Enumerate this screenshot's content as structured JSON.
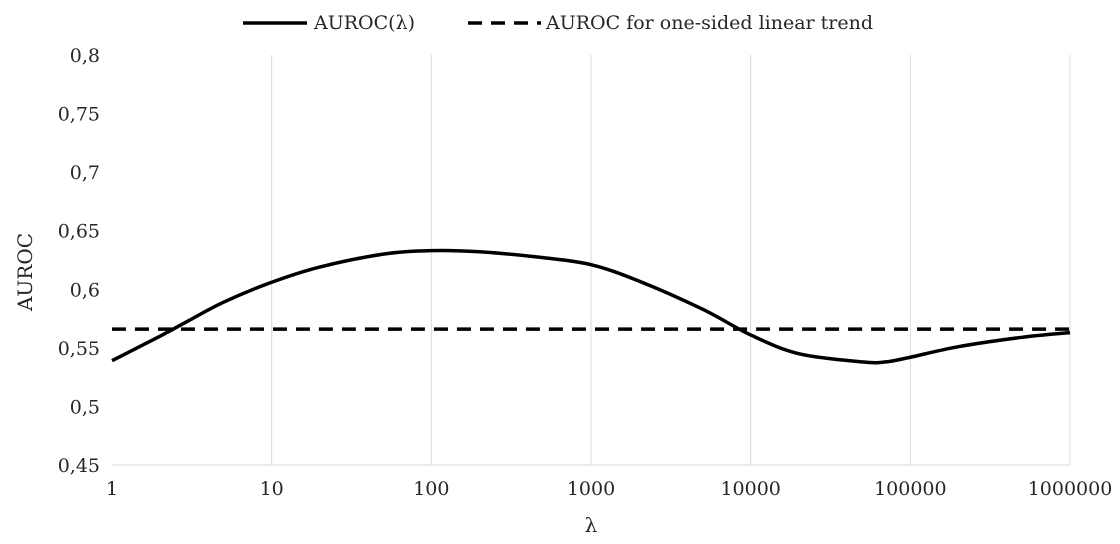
{
  "chart_data": {
    "type": "line",
    "x_scale": "log",
    "xlabel": "λ",
    "ylabel": "AUROC",
    "xlim": [
      1,
      1000000
    ],
    "ylim": [
      0.45,
      0.8
    ],
    "x_ticks": [
      1,
      10,
      100,
      1000,
      10000,
      100000,
      1000000
    ],
    "x_tick_labels": [
      "1",
      "10",
      "100",
      "1000",
      "10000",
      "100000",
      "1000000"
    ],
    "y_ticks": [
      0.45,
      0.5,
      0.55,
      0.6,
      0.65,
      0.7,
      0.75,
      0.8
    ],
    "y_tick_labels": [
      "0,45",
      "0,5",
      "0,55",
      "0,6",
      "0,65",
      "0,7",
      "0,75",
      "0,8"
    ],
    "grid": "vertical",
    "legend_position": "top",
    "series": [
      {
        "name": "AUROC(λ)",
        "style": "solid",
        "color": "#000000",
        "x": [
          1,
          2,
          3,
          5,
          10,
          20,
          50,
          100,
          200,
          500,
          1000,
          2000,
          5000,
          10000,
          20000,
          50000,
          70000,
          100000,
          200000,
          500000,
          1000000
        ],
        "y": [
          0.539,
          0.56,
          0.573,
          0.589,
          0.606,
          0.619,
          0.63,
          0.633,
          0.632,
          0.627,
          0.621,
          0.607,
          0.583,
          0.561,
          0.545,
          0.538,
          0.538,
          0.542,
          0.551,
          0.559,
          0.563
        ]
      },
      {
        "name": "AUROC for one-sided linear trend",
        "style": "dashed",
        "color": "#000000",
        "x": [
          1,
          1000000
        ],
        "y": [
          0.566,
          0.566
        ]
      }
    ]
  }
}
